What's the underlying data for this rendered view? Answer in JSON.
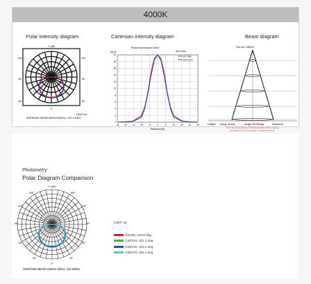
{
  "header": {
    "title": "4000K"
  },
  "polar_top": {
    "title": "Polar intensity diagram",
    "angle_labels": [
      "+/-180",
      "-120",
      "120",
      "-90",
      "90",
      "-60",
      "60",
      "0"
    ],
    "unit": "UNIT: cd",
    "beam_note": "AVERAGE BEAM ANGLE(50%): 101.3 DEG"
  },
  "cartesian": {
    "title": "Cartesian intensity diagram",
    "chart_title": "Planar Illuminance Curve",
    "ylabel": "E(LX)",
    "xlabel": "Distance(m)",
    "mh_label": "MH=10m",
    "legend": [
      "C0-C180",
      "C90-C270"
    ]
  },
  "beam": {
    "title": "Beam diagram",
    "flux_label": "Flux out: 2285 lm",
    "caption_labels": [
      "Height",
      "Eavg, Emax",
      "Angle 99.35deg",
      "Diameter"
    ],
    "note_line1": "Note: The Curve indicates the illuminated area and the average",
    "note_line2": "illumination when the Luminaire is at different distance"
  },
  "comparison": {
    "kicker": "Photometry",
    "title": "Polar Diagram Comparison",
    "angle_labels": [
      "+/-180°",
      "-150°",
      "150°",
      "-120°",
      "120°",
      "-90°",
      "90°",
      "-60°",
      "60°",
      "-30°",
      "30°",
      "0°"
    ],
    "unit": "UNIT: cd",
    "beam_note": "AVERAGE BEAM ANGLE (50%): 101.3DEG",
    "legend": [
      {
        "label": "C0/180, 103.8 deg",
        "color": "#e0192d"
      },
      {
        "label": "C30/210, 101.1 deg",
        "color": "#3ab54a"
      },
      {
        "label": "C60/240, 101.2 deg",
        "color": "#1f4ea3"
      },
      {
        "label": "C90/270, 102.1 deg",
        "color": "#5bc0e8"
      }
    ]
  },
  "colors": {
    "red": "#e0192d",
    "blue": "#1f4ea3",
    "green": "#3ab54a",
    "cyan": "#5bc0e8"
  },
  "chart_data": [
    {
      "type": "line",
      "title": "Planar Illuminance Curve",
      "xlabel": "Distance(m)",
      "ylabel": "E(LX)",
      "x": [
        -25,
        -20,
        -15,
        -10,
        -8,
        -6,
        -4,
        -2,
        0,
        2,
        4,
        6,
        8,
        10,
        15,
        20,
        25
      ],
      "xlim": [
        -25,
        25
      ],
      "ylim": [
        0,
        20
      ],
      "series": [
        {
          "name": "C0-C180",
          "color": "#e0192d",
          "values": [
            0,
            0.1,
            0.4,
            2,
            4.5,
            9,
            15,
            19,
            20,
            19,
            15,
            9,
            4.5,
            2,
            0.4,
            0.1,
            0
          ]
        },
        {
          "name": "C90-C270",
          "color": "#1f4ea3",
          "values": [
            0,
            0.1,
            0.3,
            1.5,
            4,
            8.5,
            14,
            18.5,
            20,
            18.5,
            14,
            8.5,
            4,
            1.5,
            0.3,
            0.1,
            0
          ]
        }
      ]
    },
    {
      "type": "polar",
      "title": "Polar Diagram Comparison",
      "unit": "cd",
      "series": [
        {
          "name": "C0/180",
          "beam_angle_deg": 103.8
        },
        {
          "name": "C30/210",
          "beam_angle_deg": 101.1
        },
        {
          "name": "C60/240",
          "beam_angle_deg": 101.2
        },
        {
          "name": "C90/270",
          "beam_angle_deg": 102.1
        }
      ]
    }
  ]
}
